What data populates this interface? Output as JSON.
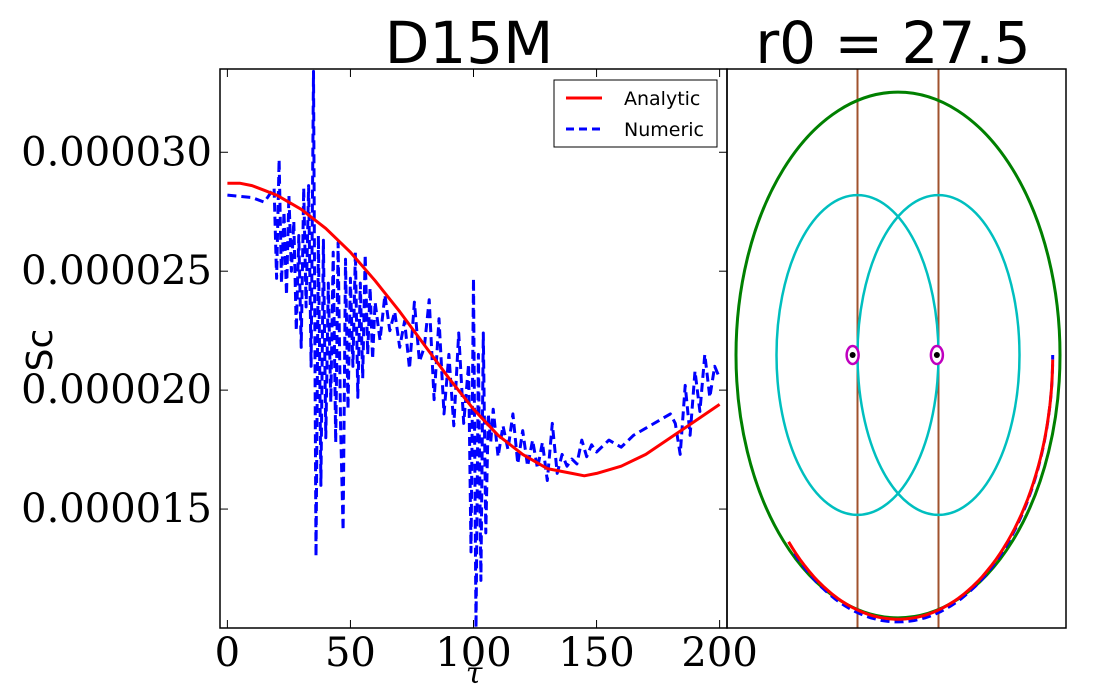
{
  "chart_data": [
    {
      "type": "line",
      "title": "D15M",
      "xlabel": "τ",
      "ylabel": "Sc",
      "xlim": [
        -3,
        203
      ],
      "ylim": [
        1e-05,
        3.35e-05
      ],
      "xticks": [
        0,
        50,
        100,
        150,
        200
      ],
      "xtick_labels": [
        "0",
        "50",
        "100",
        "150",
        "200"
      ],
      "yticks": [
        1.5e-05,
        2e-05,
        2.5e-05,
        3e-05
      ],
      "ytick_labels": [
        "0.000015",
        "0.000020",
        "0.000025",
        "0.000030"
      ],
      "legend": "top-right",
      "grid": false,
      "series": [
        {
          "name": "Analytic",
          "style": "solid",
          "color": "#ff0000",
          "x": [
            0,
            5,
            10,
            15,
            20,
            30,
            40,
            50,
            60,
            70,
            80,
            90,
            100,
            110,
            120,
            130,
            140,
            145,
            150,
            160,
            170,
            180,
            190,
            200
          ],
          "y": [
            2.87e-05,
            2.87e-05,
            2.86e-05,
            2.84e-05,
            2.82e-05,
            2.76e-05,
            2.68e-05,
            2.58e-05,
            2.46e-05,
            2.33e-05,
            2.19e-05,
            2.05e-05,
            1.92e-05,
            1.81e-05,
            1.73e-05,
            1.67e-05,
            1.65e-05,
            1.64e-05,
            1.65e-05,
            1.68e-05,
            1.73e-05,
            1.8e-05,
            1.87e-05,
            1.94e-05
          ]
        },
        {
          "name": "Numeric",
          "style": "dashed",
          "color": "#0000ff",
          "x": [
            0,
            10,
            15,
            19,
            20,
            21,
            22,
            23,
            24,
            25,
            26,
            27,
            28,
            29,
            30,
            31,
            32,
            33,
            34,
            35,
            36,
            37,
            38,
            39,
            40,
            41,
            42,
            43,
            44,
            45,
            46,
            47,
            48,
            49,
            50,
            51,
            52,
            53,
            54,
            55,
            56,
            57,
            58,
            59,
            60,
            62,
            64,
            66,
            68,
            70,
            72,
            74,
            76,
            78,
            80,
            82,
            84,
            86,
            88,
            90,
            92,
            94,
            96,
            98,
            99,
            100,
            101,
            102,
            103,
            104,
            105,
            106,
            107,
            108,
            110,
            112,
            114,
            116,
            118,
            120,
            122,
            124,
            126,
            128,
            130,
            132,
            134,
            136,
            138,
            140,
            142,
            144,
            146,
            148,
            150,
            155,
            160,
            165,
            170,
            175,
            180,
            182,
            184,
            186,
            188,
            190,
            192,
            194,
            196,
            198,
            200
          ],
          "y": [
            2.82e-05,
            2.81e-05,
            2.79e-05,
            2.85e-05,
            2.47e-05,
            2.97e-05,
            2.45e-05,
            2.75e-05,
            2.4e-05,
            2.82e-05,
            2.5e-05,
            2.71e-05,
            2.25e-05,
            2.65e-05,
            2.18e-05,
            2.85e-05,
            2.35e-05,
            2.86e-05,
            2.1e-05,
            3.34e-05,
            1.3e-05,
            2.65e-05,
            1.6e-05,
            2.63e-05,
            1.8e-05,
            2.45e-05,
            1.95e-05,
            2.58e-05,
            1.78e-05,
            2.62e-05,
            1.85e-05,
            1.41e-05,
            2.55e-05,
            1.92e-05,
            2.47e-05,
            2.1e-05,
            2.58e-05,
            1.97e-05,
            2.45e-05,
            2.05e-05,
            2.57e-05,
            2.15e-05,
            2.43e-05,
            2.13e-05,
            2.37e-05,
            2.21e-05,
            2.4e-05,
            2.25e-05,
            2.33e-05,
            2.18e-05,
            2.29e-05,
            2.09e-05,
            2.37e-05,
            2.12e-05,
            2.18e-05,
            2.38e-05,
            1.96e-05,
            2.3e-05,
            1.9e-05,
            2.15e-05,
            1.85e-05,
            2.24e-05,
            1.86e-05,
            2.11e-05,
            1.32e-05,
            2.47e-05,
            1e-05,
            2.15e-05,
            1.2e-05,
            2.24e-05,
            1.4e-05,
            1.9e-05,
            1.78e-05,
            1.92e-05,
            1.72e-05,
            1.85e-05,
            1.75e-05,
            1.9e-05,
            1.69e-05,
            1.83e-05,
            1.68e-05,
            1.79e-05,
            1.67e-05,
            1.78e-05,
            1.62e-05,
            1.86e-05,
            1.65e-05,
            1.73e-05,
            1.68e-05,
            1.71e-05,
            1.69e-05,
            1.79e-05,
            1.72e-05,
            1.77e-05,
            1.74e-05,
            1.79e-05,
            1.76e-05,
            1.81e-05,
            1.84e-05,
            1.87e-05,
            1.9e-05,
            1.86e-05,
            1.73e-05,
            2.02e-05,
            1.81e-05,
            2.08e-05,
            1.91e-05,
            2.15e-05,
            1.97e-05,
            2.1e-05,
            2.05e-05
          ]
        }
      ]
    },
    {
      "type": "diagram",
      "title": "r0 = 27.5",
      "xlim": [
        -1.25,
        1.25
      ],
      "ylim": [
        -1.0,
        1.0
      ],
      "shapes": {
        "outer_ellipse": {
          "cx": 0,
          "cy": 0,
          "rx": 1.0,
          "ry": 0.97,
          "color": "#008000"
        },
        "inner_circles": [
          {
            "cx": -0.25,
            "cy": 0,
            "rx": 0.5,
            "ry": 0.59,
            "color": "#00bfbf"
          },
          {
            "cx": 0.25,
            "cy": 0,
            "rx": 0.5,
            "ry": 0.59,
            "color": "#00bfbf"
          }
        ],
        "vertical_lines": {
          "x": [
            -0.25,
            0.25
          ],
          "color": "#a0522d"
        },
        "points": [
          {
            "x": -0.28,
            "y": 0,
            "ring": "#bf00bf",
            "dot": "#000000"
          },
          {
            "x": 0.24,
            "y": 0,
            "ring": "#bf00bf",
            "dot": "#000000"
          }
        ],
        "analytic_arc": {
          "color": "#ff0000",
          "t_start": 225,
          "t_end": 360
        },
        "numeric_arc": {
          "color": "#0000ff",
          "t_start": 228,
          "t_end": 360
        }
      }
    }
  ]
}
